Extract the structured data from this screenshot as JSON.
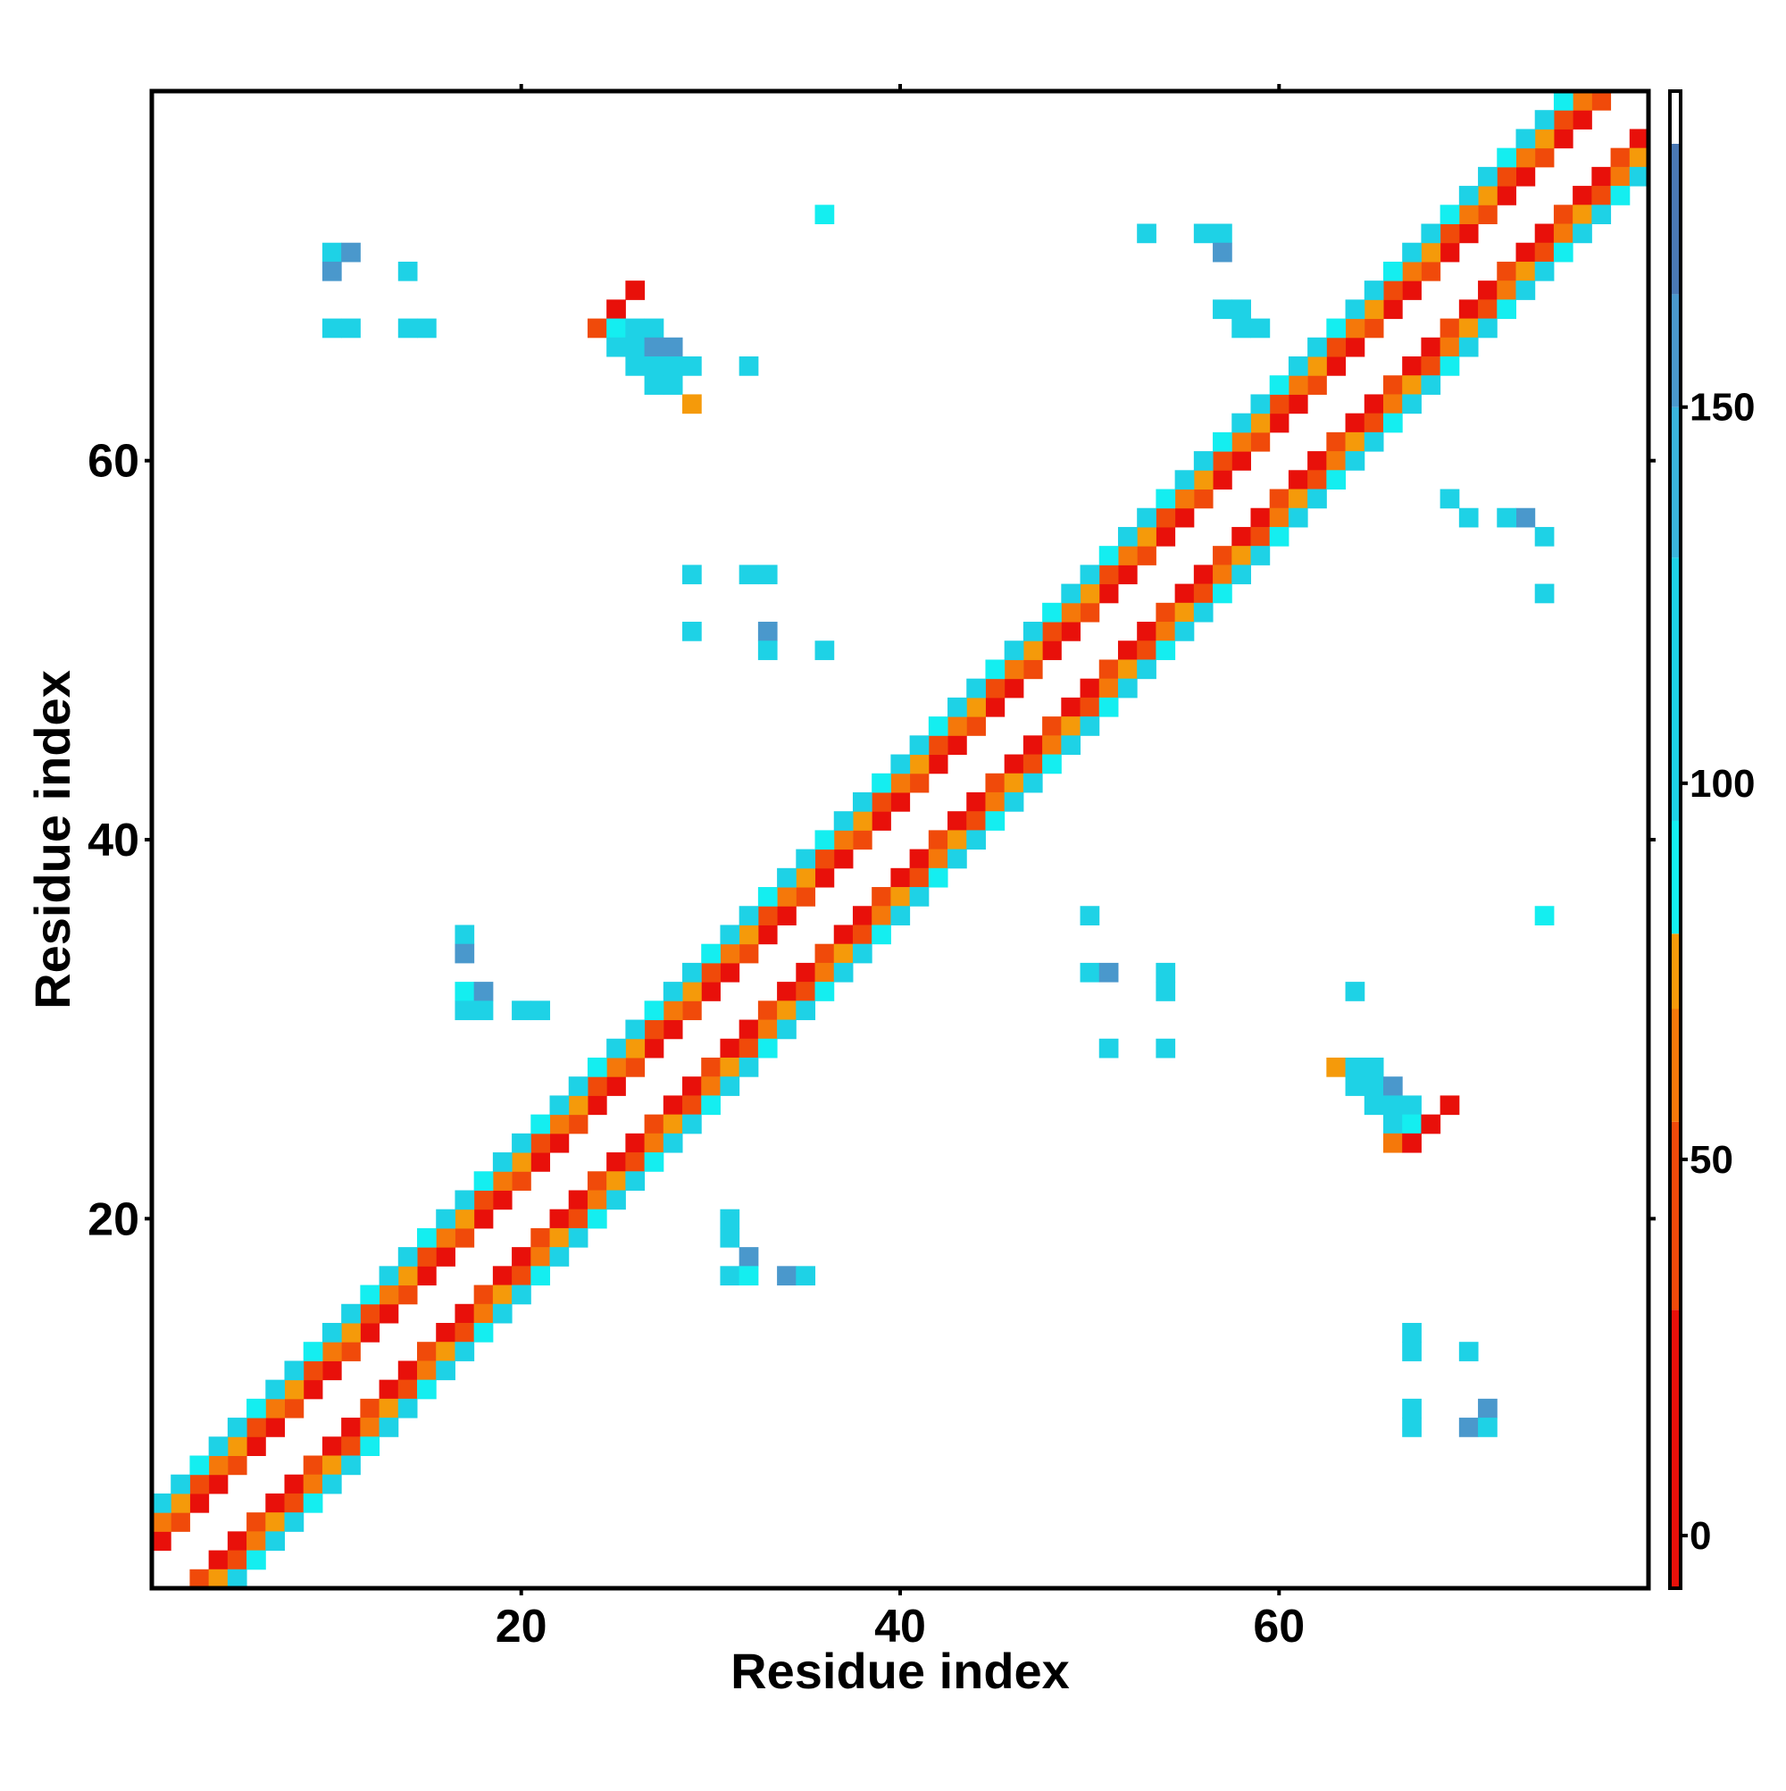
{
  "chart_data": {
    "type": "heatmap",
    "x_label": "Residue index",
    "y_label": "Residue index",
    "xlim": [
      0.5,
      79.5
    ],
    "ylim": [
      0.5,
      79.5
    ],
    "xticks": [
      20,
      40,
      60
    ],
    "yticks": [
      20,
      40,
      60
    ],
    "clim": [
      -7,
      192
    ],
    "cticks": [
      0,
      50,
      100,
      150
    ],
    "colorscale": [
      {
        "value": -7,
        "color": "#e8100a"
      },
      {
        "value": 30,
        "color": "#f04a0a"
      },
      {
        "value": 55,
        "color": "#f5780a"
      },
      {
        "value": 70,
        "color": "#f59a0a"
      },
      {
        "value": 80,
        "color": "#14eef0"
      },
      {
        "value": 95,
        "color": "#1ed2e6"
      },
      {
        "value": 130,
        "color": "#3ab4dc"
      },
      {
        "value": 150,
        "color": "#4a98cc"
      },
      {
        "value": 165,
        "color": "#4a78b4"
      },
      {
        "value": 185,
        "color": "#ffffff"
      }
    ],
    "x": [
      1,
      2,
      3,
      4,
      5,
      6,
      7,
      8,
      9,
      10,
      11,
      12,
      13,
      14,
      15,
      16,
      17,
      18,
      19,
      20,
      21,
      22,
      23,
      24,
      25,
      26,
      27,
      28,
      29,
      30,
      31,
      32,
      33,
      34,
      35,
      36,
      37,
      38,
      39,
      40,
      41,
      42,
      43,
      44,
      45,
      46,
      47,
      48,
      49,
      50,
      51,
      52,
      53,
      54,
      55,
      56,
      57,
      58,
      59,
      60,
      61,
      62,
      63,
      64,
      65,
      66,
      67,
      68,
      69,
      70,
      71,
      72,
      73,
      74,
      75,
      76,
      77,
      3,
      4,
      5,
      6,
      7,
      8,
      9,
      10,
      11,
      12,
      13,
      14,
      15,
      16,
      17,
      18,
      19,
      20,
      21,
      22,
      23,
      24,
      25,
      26,
      27,
      28,
      29,
      30,
      31,
      32,
      33,
      34,
      35,
      36,
      37,
      38,
      39,
      40,
      41,
      42,
      43,
      44,
      45,
      46,
      47,
      48,
      49,
      50,
      51,
      52,
      53,
      54,
      55,
      56,
      57,
      58,
      59,
      60,
      61,
      62,
      63,
      64,
      65,
      66,
      67,
      68,
      69,
      70,
      71,
      72,
      73,
      74,
      75,
      76,
      77,
      78,
      79,
      1,
      2,
      3,
      4,
      5,
      6,
      7,
      8,
      9,
      10,
      11,
      12,
      13,
      14,
      15,
      16,
      17,
      18,
      19,
      20,
      21,
      22,
      23,
      24,
      25,
      26,
      27,
      28,
      29,
      30,
      31,
      32,
      33,
      34,
      35,
      36,
      37,
      38,
      39,
      40,
      41,
      42,
      43,
      44,
      45,
      46,
      47,
      48,
      49,
      50,
      51,
      52,
      53,
      54,
      55,
      56,
      57,
      58,
      59,
      60,
      61,
      62,
      63,
      64,
      65,
      66,
      67,
      68,
      69,
      70,
      71,
      72,
      73,
      74,
      75,
      76,
      4,
      5,
      6,
      7,
      8,
      9,
      10,
      11,
      12,
      13,
      14,
      15,
      16,
      17,
      18,
      19,
      20,
      21,
      22,
      23,
      24,
      25,
      26,
      27,
      28,
      29,
      30,
      31,
      32,
      33,
      34,
      35,
      36,
      37,
      38,
      39,
      40,
      41,
      42,
      43,
      44,
      45,
      46,
      47,
      48,
      49,
      50,
      51,
      52,
      53,
      54,
      55,
      56,
      57,
      58,
      59,
      60,
      61,
      62,
      63,
      64,
      65,
      66,
      67,
      68,
      69,
      70,
      71,
      72,
      73,
      74,
      75,
      76,
      77,
      78,
      79,
      1,
      2,
      3,
      4,
      5,
      6,
      7,
      8,
      9,
      10,
      11,
      12,
      13,
      14,
      15,
      16,
      17,
      18,
      19,
      20,
      21,
      22,
      23,
      24,
      25,
      26,
      27,
      28,
      29,
      30,
      31,
      32,
      33,
      34,
      35,
      36,
      37,
      38,
      39,
      40,
      41,
      42,
      43,
      44,
      45,
      46,
      47,
      48,
      49,
      50,
      51,
      52,
      53,
      54,
      55,
      56,
      57,
      58,
      59,
      60,
      61,
      62,
      63,
      64,
      65,
      66,
      67,
      68,
      69,
      70,
      71,
      72,
      73,
      74,
      75,
      5,
      6,
      7,
      8,
      9,
      10,
      11,
      12,
      13,
      14,
      15,
      16,
      17,
      18,
      19,
      20,
      21,
      22,
      23,
      24,
      25,
      26,
      27,
      28,
      29,
      30,
      31,
      32,
      33,
      34,
      35,
      36,
      37,
      38,
      39,
      40,
      41,
      42,
      43,
      44,
      45,
      46,
      47,
      48,
      49,
      50,
      51,
      52,
      53,
      54,
      55,
      56,
      57,
      58,
      59,
      60,
      61,
      62,
      63,
      64,
      65,
      66,
      67,
      68,
      69,
      70,
      71,
      72,
      73,
      74,
      75,
      76,
      77,
      78,
      79,
      10,
      11,
      10,
      14,
      10,
      11,
      14,
      15,
      26,
      25,
      24,
      25,
      26,
      27,
      25,
      26,
      27,
      28,
      26,
      27,
      28,
      29,
      27,
      28,
      29,
      32,
      36,
      53,
      56,
      57,
      57,
      57,
      58,
      58,
      59,
      63,
      64,
      65,
      64,
      65,
      66,
      65,
      66,
      67,
      66,
      67,
      66,
      67,
      68,
      69,
      67,
      67,
      70,
      67,
      67,
      70,
      71,
      71,
      74,
      50,
      50,
      51,
      54,
      54,
      51,
      54,
      64,
      17,
      17,
      17,
      18,
      17,
      18,
      20,
      21,
      29,
      32,
      33,
      29,
      33,
      33,
      36,
      74,
      73,
      72,
      69,
      70,
      31,
      31,
      31,
      32,
      32,
      34,
      35,
      74
    ],
    "y": [
      3,
      4,
      5,
      6,
      7,
      8,
      9,
      10,
      11,
      12,
      13,
      14,
      15,
      16,
      17,
      18,
      19,
      20,
      21,
      22,
      23,
      24,
      25,
      26,
      27,
      28,
      29,
      30,
      31,
      32,
      33,
      34,
      35,
      36,
      37,
      38,
      39,
      40,
      41,
      42,
      43,
      44,
      45,
      46,
      47,
      48,
      49,
      50,
      51,
      52,
      53,
      54,
      55,
      56,
      57,
      58,
      59,
      60,
      61,
      62,
      63,
      64,
      65,
      66,
      67,
      68,
      69,
      70,
      71,
      72,
      73,
      74,
      75,
      76,
      77,
      78,
      79,
      1,
      2,
      3,
      4,
      5,
      6,
      7,
      8,
      9,
      10,
      11,
      12,
      13,
      14,
      15,
      16,
      17,
      18,
      19,
      20,
      21,
      22,
      23,
      24,
      25,
      26,
      27,
      28,
      29,
      30,
      31,
      32,
      33,
      34,
      35,
      36,
      37,
      38,
      39,
      40,
      41,
      42,
      43,
      44,
      45,
      46,
      47,
      48,
      49,
      50,
      51,
      52,
      53,
      54,
      55,
      56,
      57,
      58,
      59,
      60,
      61,
      62,
      63,
      64,
      65,
      66,
      67,
      68,
      69,
      70,
      71,
      72,
      73,
      74,
      75,
      76,
      77,
      4,
      5,
      6,
      7,
      8,
      9,
      10,
      11,
      12,
      13,
      14,
      15,
      16,
      17,
      18,
      19,
      20,
      21,
      22,
      23,
      24,
      25,
      26,
      27,
      28,
      29,
      30,
      31,
      32,
      33,
      34,
      35,
      36,
      37,
      38,
      39,
      40,
      41,
      42,
      43,
      44,
      45,
      46,
      47,
      48,
      49,
      50,
      51,
      52,
      53,
      54,
      55,
      56,
      57,
      58,
      59,
      60,
      61,
      62,
      63,
      64,
      65,
      66,
      67,
      68,
      69,
      70,
      71,
      72,
      73,
      74,
      75,
      76,
      77,
      78,
      79,
      1,
      2,
      3,
      4,
      5,
      6,
      7,
      8,
      9,
      10,
      11,
      12,
      13,
      14,
      15,
      16,
      17,
      18,
      19,
      20,
      21,
      22,
      23,
      24,
      25,
      26,
      27,
      28,
      29,
      30,
      31,
      32,
      33,
      34,
      35,
      36,
      37,
      38,
      39,
      40,
      41,
      42,
      43,
      44,
      45,
      46,
      47,
      48,
      49,
      50,
      51,
      52,
      53,
      54,
      55,
      56,
      57,
      58,
      59,
      60,
      61,
      62,
      63,
      64,
      65,
      66,
      67,
      68,
      69,
      70,
      71,
      72,
      73,
      74,
      75,
      76,
      5,
      6,
      7,
      8,
      9,
      10,
      11,
      12,
      13,
      14,
      15,
      16,
      17,
      18,
      19,
      20,
      21,
      22,
      23,
      24,
      25,
      26,
      27,
      28,
      29,
      30,
      31,
      32,
      33,
      34,
      35,
      36,
      37,
      38,
      39,
      40,
      41,
      42,
      43,
      44,
      45,
      46,
      47,
      48,
      49,
      50,
      51,
      52,
      53,
      54,
      55,
      56,
      57,
      58,
      59,
      60,
      61,
      62,
      63,
      64,
      65,
      66,
      67,
      68,
      69,
      70,
      71,
      72,
      73,
      74,
      75,
      76,
      77,
      78,
      79,
      1,
      2,
      3,
      4,
      5,
      6,
      7,
      8,
      9,
      10,
      11,
      12,
      13,
      14,
      15,
      16,
      17,
      18,
      19,
      20,
      21,
      22,
      23,
      24,
      25,
      26,
      27,
      28,
      29,
      30,
      31,
      32,
      33,
      34,
      35,
      36,
      37,
      38,
      39,
      40,
      41,
      42,
      43,
      44,
      45,
      46,
      47,
      48,
      49,
      50,
      51,
      52,
      53,
      54,
      55,
      56,
      57,
      58,
      59,
      60,
      61,
      62,
      63,
      64,
      65,
      66,
      67,
      68,
      69,
      70,
      71,
      72,
      73,
      74,
      75,
      71,
      71,
      70,
      70,
      67,
      67,
      67,
      67,
      69,
      68,
      67,
      67,
      67,
      67,
      66,
      66,
      66,
      66,
      65,
      65,
      65,
      65,
      64,
      64,
      63,
      65,
      73,
      72,
      72,
      72,
      71,
      68,
      68,
      67,
      67,
      28,
      28,
      28,
      27,
      27,
      27,
      26,
      26,
      26,
      25,
      25,
      24,
      24,
      25,
      26,
      14,
      13,
      13,
      10,
      9,
      9,
      10,
      9,
      36,
      36,
      33,
      33,
      33,
      32,
      29,
      29,
      32,
      35,
      34,
      32,
      32,
      31,
      31,
      31,
      31,
      54,
      54,
      54,
      51,
      51,
      50,
      50,
      56,
      57,
      57,
      58,
      57,
      20,
      19,
      17,
      18,
      17,
      17,
      17,
      53
    ],
    "values": [
      12,
      38,
      25,
      12,
      38,
      25,
      12,
      38,
      25,
      12,
      38,
      25,
      12,
      38,
      25,
      12,
      38,
      25,
      12,
      38,
      25,
      12,
      38,
      25,
      12,
      38,
      25,
      12,
      38,
      25,
      12,
      38,
      25,
      12,
      38,
      25,
      12,
      38,
      25,
      12,
      38,
      25,
      12,
      38,
      25,
      12,
      38,
      25,
      12,
      38,
      25,
      12,
      38,
      25,
      12,
      38,
      25,
      12,
      38,
      25,
      12,
      38,
      25,
      12,
      38,
      25,
      12,
      38,
      25,
      12,
      38,
      25,
      12,
      38,
      25,
      12,
      38,
      38,
      25,
      12,
      38,
      25,
      12,
      38,
      25,
      12,
      38,
      25,
      12,
      38,
      25,
      12,
      38,
      25,
      12,
      38,
      25,
      12,
      38,
      25,
      12,
      38,
      25,
      12,
      38,
      25,
      12,
      38,
      25,
      12,
      38,
      25,
      12,
      38,
      25,
      12,
      38,
      25,
      12,
      38,
      25,
      12,
      38,
      25,
      12,
      38,
      25,
      12,
      38,
      25,
      12,
      38,
      25,
      12,
      38,
      25,
      12,
      38,
      25,
      12,
      38,
      25,
      12,
      38,
      25,
      12,
      38,
      25,
      12,
      38,
      25,
      12,
      38,
      25,
      60,
      72,
      45,
      60,
      72,
      45,
      60,
      72,
      45,
      60,
      72,
      45,
      60,
      72,
      45,
      60,
      72,
      45,
      60,
      72,
      45,
      60,
      72,
      45,
      60,
      72,
      45,
      60,
      72,
      45,
      60,
      72,
      45,
      60,
      72,
      45,
      60,
      72,
      45,
      60,
      72,
      45,
      60,
      72,
      45,
      60,
      72,
      45,
      60,
      72,
      45,
      60,
      72,
      45,
      60,
      72,
      45,
      60,
      72,
      45,
      60,
      72,
      45,
      60,
      72,
      45,
      60,
      72,
      45,
      60,
      72,
      45,
      60,
      72,
      45,
      60,
      72,
      45,
      60,
      72,
      45,
      60,
      72,
      45,
      60,
      72,
      45,
      60,
      72,
      45,
      60,
      72,
      45,
      60,
      72,
      45,
      60,
      72,
      45,
      60,
      72,
      45,
      60,
      72,
      45,
      60,
      72,
      45,
      60,
      72,
      45,
      60,
      72,
      45,
      60,
      72,
      45,
      60,
      72,
      45,
      60,
      72,
      45,
      60,
      72,
      45,
      60,
      72,
      45,
      60,
      72,
      45,
      60,
      72,
      45,
      60,
      72,
      45,
      60,
      72,
      45,
      60,
      72,
      45,
      60,
      72,
      45,
      60,
      72,
      45,
      60,
      72,
      100,
      115,
      88,
      100,
      115,
      88,
      100,
      115,
      88,
      100,
      115,
      88,
      100,
      115,
      88,
      100,
      115,
      88,
      100,
      115,
      88,
      100,
      115,
      88,
      100,
      115,
      88,
      100,
      115,
      88,
      100,
      115,
      88,
      100,
      115,
      88,
      100,
      115,
      88,
      100,
      115,
      88,
      100,
      115,
      88,
      100,
      115,
      88,
      100,
      115,
      88,
      100,
      115,
      88,
      100,
      115,
      88,
      100,
      115,
      88,
      100,
      115,
      88,
      100,
      115,
      88,
      100,
      115,
      88,
      100,
      115,
      88,
      100,
      115,
      88,
      115,
      88,
      100,
      115,
      88,
      100,
      115,
      88,
      100,
      115,
      88,
      100,
      115,
      88,
      100,
      115,
      88,
      100,
      115,
      88,
      100,
      115,
      88,
      100,
      115,
      88,
      100,
      115,
      88,
      100,
      115,
      88,
      100,
      115,
      88,
      100,
      115,
      88,
      100,
      115,
      88,
      100,
      115,
      88,
      100,
      115,
      88,
      100,
      115,
      88,
      100,
      115,
      88,
      100,
      115,
      88,
      100,
      115,
      88,
      100,
      115,
      88,
      100,
      115,
      88,
      100,
      115,
      88,
      100,
      115,
      88,
      100,
      115,
      88,
      100,
      125,
      150,
      150,
      125,
      125,
      125,
      125,
      125,
      10,
      10,
      35,
      88,
      125,
      125,
      125,
      125,
      150,
      150,
      125,
      125,
      125,
      115,
      115,
      115,
      70,
      125,
      88,
      125,
      115,
      115,
      150,
      125,
      125,
      125,
      125,
      70,
      115,
      115,
      125,
      125,
      150,
      125,
      125,
      115,
      125,
      88,
      60,
      20,
      20,
      10,
      115,
      115,
      125,
      115,
      115,
      150,
      150,
      115,
      88,
      125,
      125,
      150,
      125,
      125,
      125,
      125,
      115,
      125,
      150,
      88,
      150,
      125,
      125,
      125,
      115,
      125,
      125,
      125,
      125,
      150,
      115,
      125,
      115,
      150,
      125,
      125,
      125,
      125,
      125,
      125,
      150,
      88,
      150,
      115,
      125
    ]
  }
}
